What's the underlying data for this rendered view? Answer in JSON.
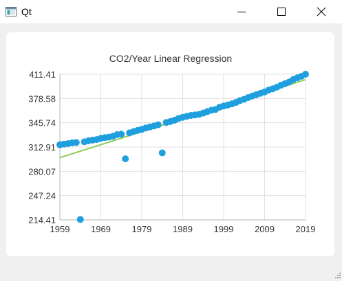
{
  "window": {
    "title": "Qt",
    "icon": "qt-window-icon",
    "controls": [
      "minimize-icon",
      "maximize-icon",
      "close-icon"
    ]
  },
  "colors": {
    "scatter": "#209fdf",
    "regression_line": "#8fcc5a",
    "grid": "#e0e0e0",
    "axis": "#b4b4b4",
    "text": "#333333"
  },
  "chart_data": {
    "type": "scatter",
    "title": "CO2/Year Linear Regression",
    "xlabel": "",
    "ylabel": "",
    "xlim": [
      1959,
      2019
    ],
    "ylim": [
      214.41,
      411.41
    ],
    "x_ticks": [
      "1959",
      "1969",
      "1979",
      "1989",
      "1999",
      "2009",
      "2019"
    ],
    "y_ticks": [
      "411.41",
      "378.58",
      "345.74",
      "312.91",
      "280.07",
      "247.24",
      "214.41"
    ],
    "grid": true,
    "legend": "none",
    "series": [
      {
        "type": "scatter",
        "points": [
          [
            1959,
            316.0
          ],
          [
            1960,
            316.9
          ],
          [
            1961,
            317.6
          ],
          [
            1962,
            318.5
          ],
          [
            1963,
            319.0
          ],
          [
            1964,
            214.9
          ],
          [
            1965,
            320.0
          ],
          [
            1966,
            321.4
          ],
          [
            1967,
            322.2
          ],
          [
            1968,
            323.0
          ],
          [
            1969,
            324.6
          ],
          [
            1970,
            325.7
          ],
          [
            1971,
            326.3
          ],
          [
            1972,
            327.5
          ],
          [
            1973,
            329.7
          ],
          [
            1974,
            330.2
          ],
          [
            1975,
            297.0
          ],
          [
            1976,
            332.1
          ],
          [
            1977,
            333.8
          ],
          [
            1978,
            335.4
          ],
          [
            1979,
            336.8
          ],
          [
            1980,
            338.7
          ],
          [
            1981,
            340.1
          ],
          [
            1982,
            341.4
          ],
          [
            1983,
            343.0
          ],
          [
            1984,
            305.0
          ],
          [
            1985,
            346.1
          ],
          [
            1986,
            347.4
          ],
          [
            1987,
            349.2
          ],
          [
            1988,
            351.6
          ],
          [
            1989,
            353.1
          ],
          [
            1990,
            354.4
          ],
          [
            1991,
            355.6
          ],
          [
            1992,
            356.4
          ],
          [
            1993,
            357.1
          ],
          [
            1994,
            358.8
          ],
          [
            1995,
            360.8
          ],
          [
            1996,
            362.6
          ],
          [
            1997,
            363.7
          ],
          [
            1998,
            366.7
          ],
          [
            1999,
            368.4
          ],
          [
            2000,
            369.7
          ],
          [
            2001,
            371.3
          ],
          [
            2002,
            373.2
          ],
          [
            2003,
            375.8
          ],
          [
            2004,
            377.5
          ],
          [
            2005,
            379.8
          ],
          [
            2006,
            381.9
          ],
          [
            2007,
            383.8
          ],
          [
            2008,
            385.6
          ],
          [
            2009,
            387.4
          ],
          [
            2010,
            389.9
          ],
          [
            2011,
            391.7
          ],
          [
            2012,
            393.9
          ],
          [
            2013,
            396.5
          ],
          [
            2014,
            398.6
          ],
          [
            2015,
            400.8
          ],
          [
            2016,
            404.2
          ],
          [
            2017,
            406.5
          ],
          [
            2018,
            408.5
          ],
          [
            2019,
            411.4
          ]
        ]
      },
      {
        "type": "line",
        "points": [
          [
            1959,
            298.5
          ],
          [
            2019,
            404.0
          ]
        ]
      }
    ]
  }
}
